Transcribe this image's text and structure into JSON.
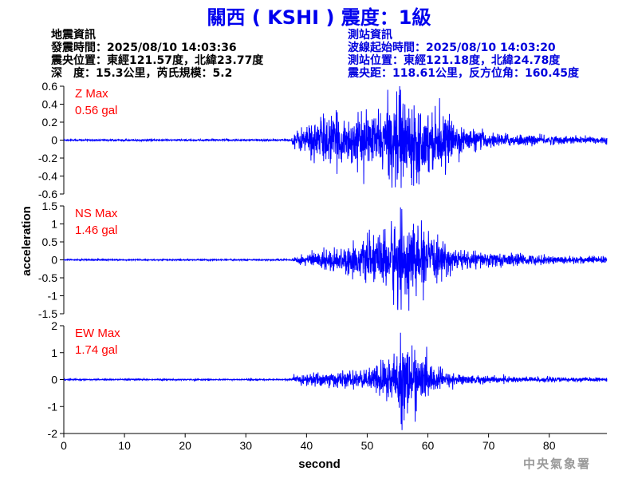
{
  "title": "關西 ( KSHI ) 震度：1級",
  "quake_info": {
    "heading": "地震資訊",
    "origin_time": "發震時間：2025/08/10 14:03:36",
    "epicenter": "震央位置：東經121.57度，北緯23.77度",
    "depth_magnitude": "深　度：15.3公里，芮氏規模：5.2"
  },
  "station_info": {
    "heading": "測站資訊",
    "record_start": "波線起始時間：2025/08/10 14:03:20",
    "location": "測站位置：東經121.18度，北緯24.78度",
    "distance_azimuth": "震央距：118.61公里，反方位角：160.45度"
  },
  "agency": "中央氣象署",
  "colors": {
    "trace": "#0000ff",
    "max_label": "#ff0000",
    "title": "#0000ee",
    "station_text": "#0000dd"
  },
  "chart_data": [
    {
      "type": "line",
      "panel": "Z",
      "max_label": "Z Max",
      "max_value": "0.56 gal",
      "peak": 0.56,
      "ylim": [
        -0.6,
        0.6
      ],
      "yticks": [
        "0.6",
        "0.4",
        "0.2",
        "0",
        "-0.2",
        "-0.4",
        "-0.6"
      ],
      "yticks_values": [
        0.6,
        0.4,
        0.2,
        0,
        -0.2,
        -0.4,
        -0.6
      ],
      "noise": 0.005,
      "envelope": [
        [
          0,
          0.008
        ],
        [
          37.5,
          0.008
        ],
        [
          38,
          0.08
        ],
        [
          40,
          0.15
        ],
        [
          43,
          0.25
        ],
        [
          46,
          0.22
        ],
        [
          50,
          0.24
        ],
        [
          53,
          0.28
        ],
        [
          55,
          0.45
        ],
        [
          57,
          0.38
        ],
        [
          60,
          0.3
        ],
        [
          63,
          0.22
        ],
        [
          66,
          0.12
        ],
        [
          70,
          0.07
        ],
        [
          80,
          0.04
        ],
        [
          89.5,
          0.035
        ]
      ]
    },
    {
      "type": "line",
      "panel": "NS",
      "max_label": "NS Max",
      "max_value": "1.46 gal",
      "peak": 1.46,
      "ylim": [
        -1.5,
        1.5
      ],
      "yticks": [
        "1.5",
        "1",
        "0.5",
        "0",
        "-0.5",
        "-1",
        "-1.5"
      ],
      "yticks_values": [
        1.5,
        1,
        0.5,
        0,
        -0.5,
        -1,
        -1.5
      ],
      "noise": 0.01,
      "envelope": [
        [
          0,
          0.015
        ],
        [
          37.5,
          0.015
        ],
        [
          38,
          0.08
        ],
        [
          40,
          0.15
        ],
        [
          43,
          0.25
        ],
        [
          46,
          0.3
        ],
        [
          50,
          0.45
        ],
        [
          53,
          0.7
        ],
        [
          55,
          1.05
        ],
        [
          57,
          0.9
        ],
        [
          60,
          0.6
        ],
        [
          63,
          0.35
        ],
        [
          66,
          0.22
        ],
        [
          70,
          0.18
        ],
        [
          80,
          0.1
        ],
        [
          89.5,
          0.08
        ]
      ]
    },
    {
      "type": "line",
      "panel": "EW",
      "max_label": "EW Max",
      "max_value": "1.74 gal",
      "peak": 1.74,
      "ylim": [
        -2,
        2
      ],
      "yticks": [
        "2",
        "1",
        "0",
        "-1",
        "-2"
      ],
      "yticks_values": [
        2,
        1,
        0,
        -1,
        -2
      ],
      "noise": 0.012,
      "envelope": [
        [
          0,
          0.02
        ],
        [
          37.5,
          0.02
        ],
        [
          38,
          0.12
        ],
        [
          40,
          0.2
        ],
        [
          43,
          0.25
        ],
        [
          46,
          0.25
        ],
        [
          50,
          0.3
        ],
        [
          53,
          0.7
        ],
        [
          55,
          1.1
        ],
        [
          57,
          1.1
        ],
        [
          60,
          0.55
        ],
        [
          63,
          0.25
        ],
        [
          66,
          0.15
        ],
        [
          70,
          0.12
        ],
        [
          80,
          0.08
        ],
        [
          89.5,
          0.06
        ]
      ]
    }
  ],
  "x_axis": {
    "label": "second",
    "ticks": [
      "0",
      "10",
      "20",
      "30",
      "40",
      "50",
      "60",
      "70",
      "80"
    ],
    "tick_values": [
      0,
      10,
      20,
      30,
      40,
      50,
      60,
      70,
      80
    ],
    "xlim": [
      0,
      89.5
    ]
  },
  "y_axis_label": "acceleration"
}
